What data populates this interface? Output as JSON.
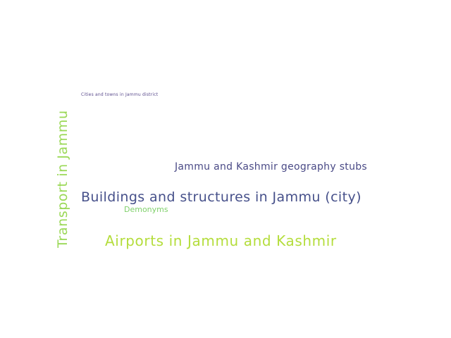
{
  "word_cloud": {
    "words": [
      {
        "key": "cities",
        "text": "Cities and towns in Jammu district",
        "color": "#5a4b8c"
      },
      {
        "key": "stubs",
        "text": "Jammu and Kashmir geography stubs",
        "color": "#4a4a86"
      },
      {
        "key": "buildings",
        "text": "Buildings and structures in Jammu (city)",
        "color": "#46508a"
      },
      {
        "key": "demonyms",
        "text": "Demonyms",
        "color": "#7fd06a"
      },
      {
        "key": "airports",
        "text": "Airports in Jammu and Kashmir",
        "color": "#b4dd3c"
      },
      {
        "key": "transport",
        "text": "Transport in Jammu",
        "color": "#9ad856"
      }
    ]
  }
}
